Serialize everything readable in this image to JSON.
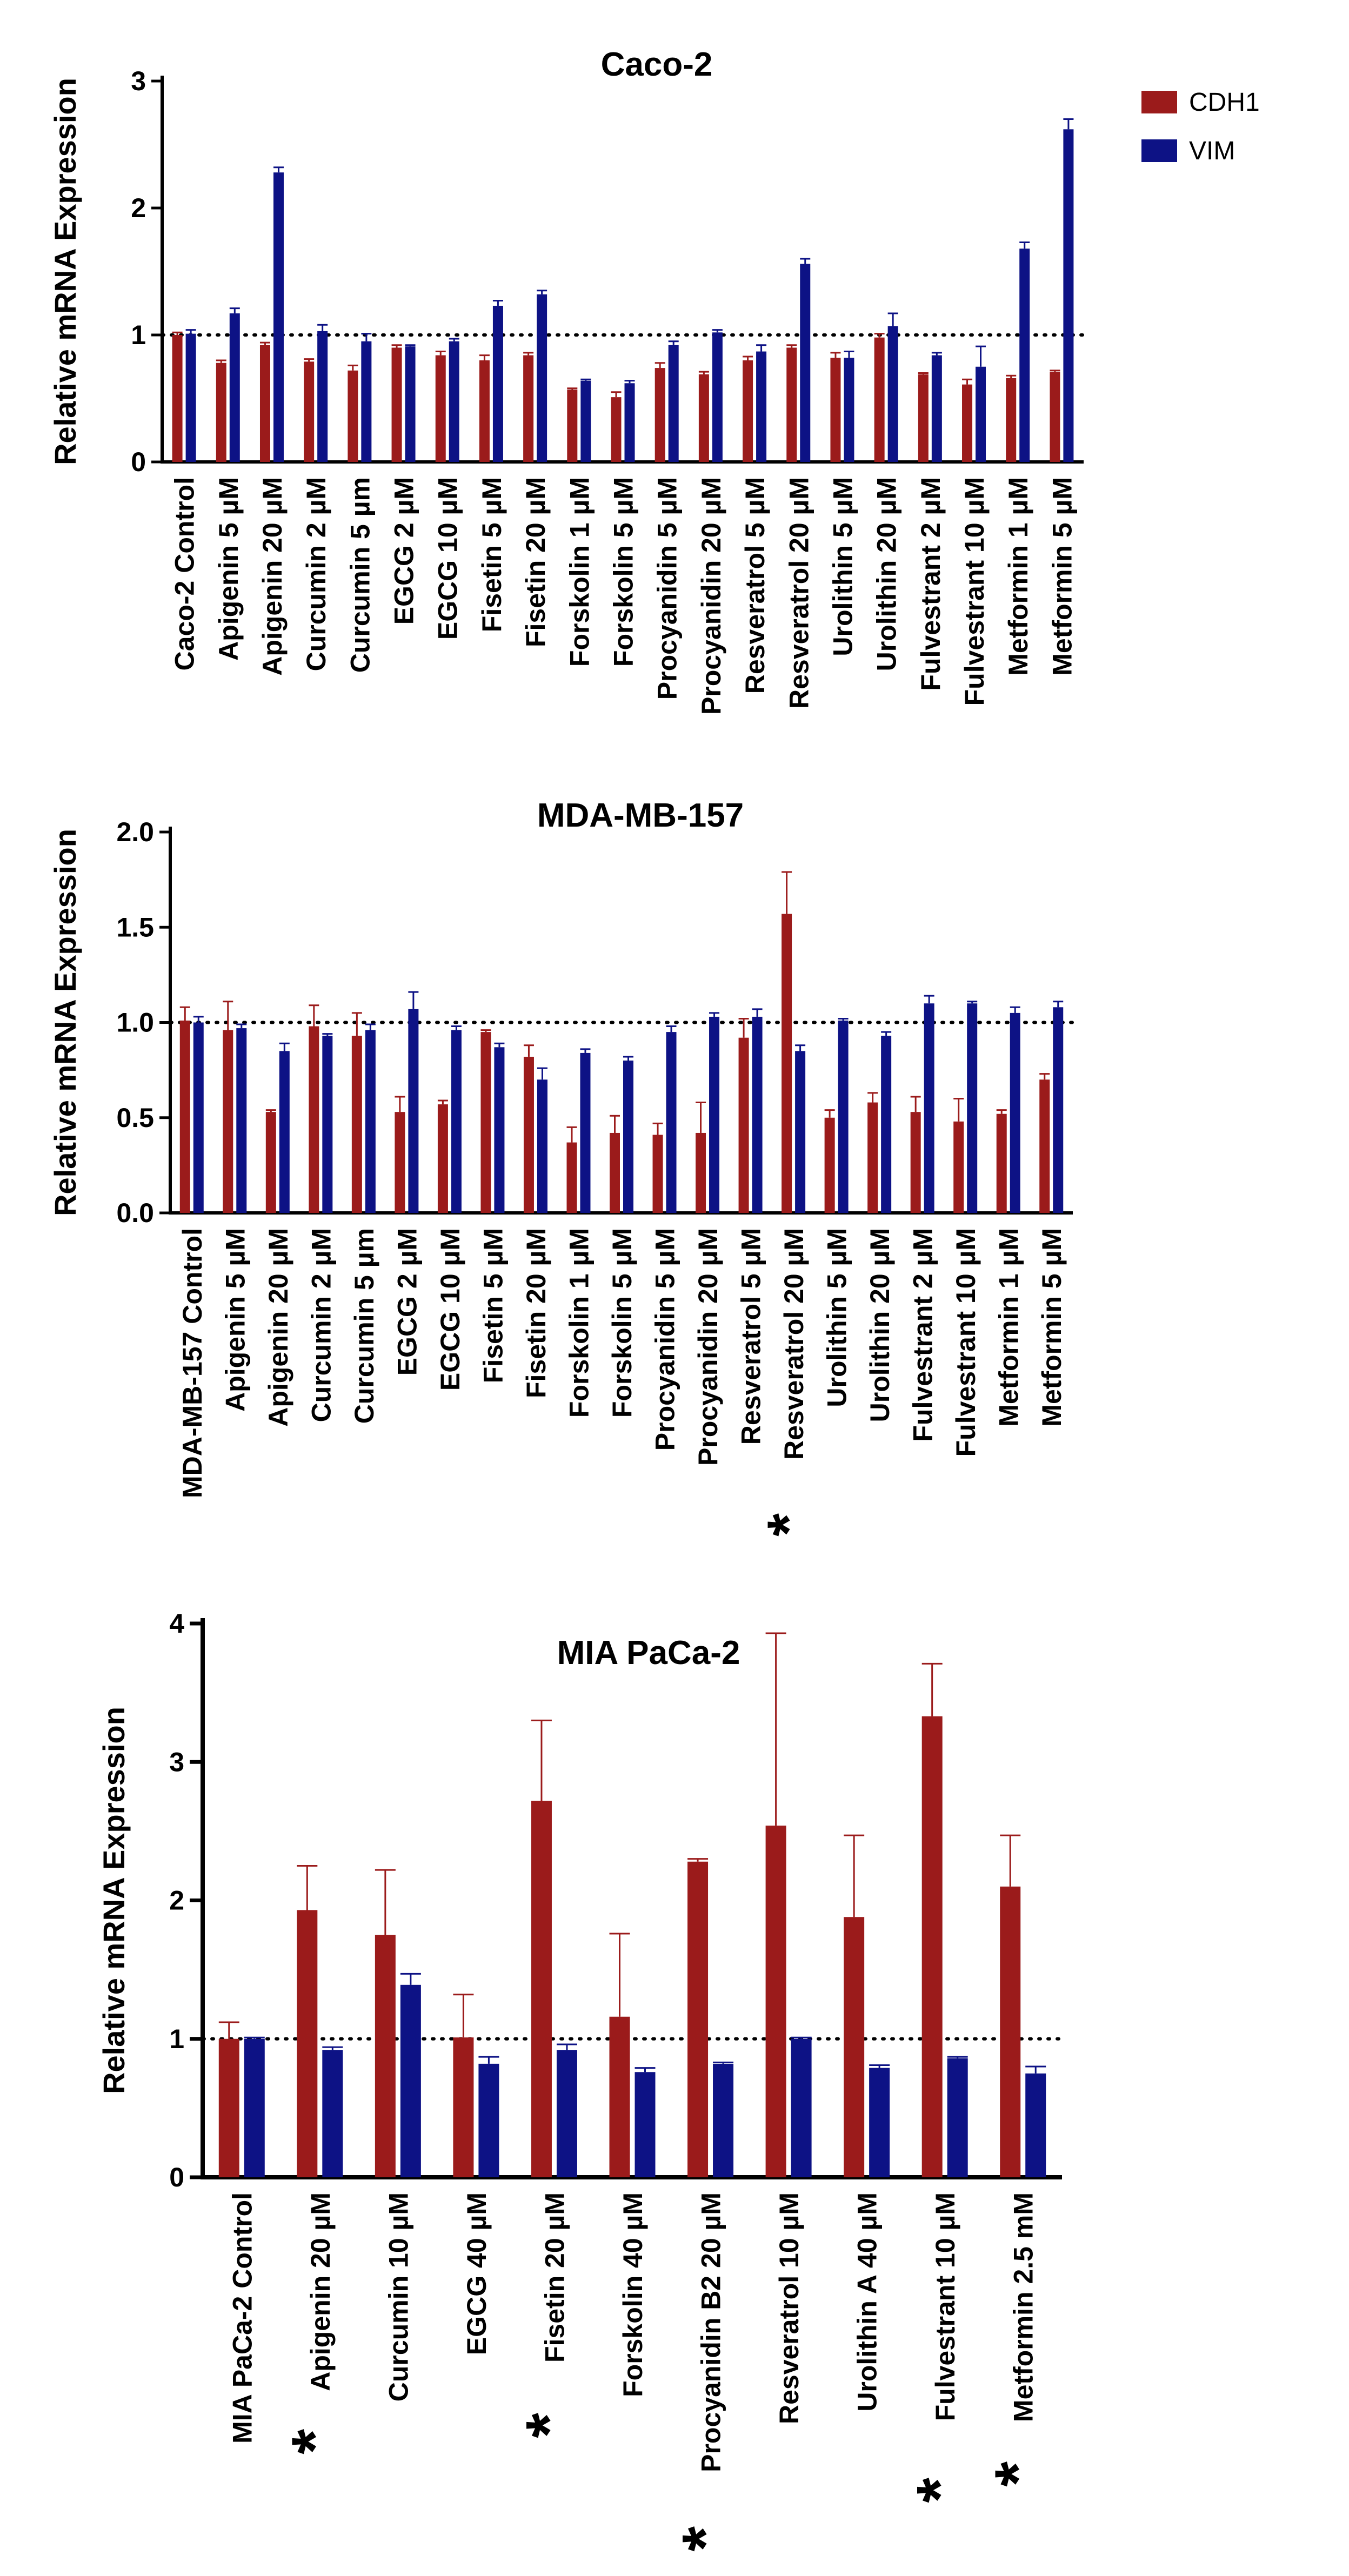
{
  "legend": [
    {
      "label": "CDH1",
      "color": "#9b1b1b"
    },
    {
      "label": "VIM",
      "color": "#0d1285"
    }
  ],
  "chart_data": [
    {
      "type": "bar",
      "title": "Caco-2",
      "ylabel": "Relative mRNA Expression",
      "xlabel": "",
      "ylim": [
        0,
        3
      ],
      "yticks": [
        "0",
        "1",
        "2",
        "3"
      ],
      "reference_line": 1,
      "legend_position": "top-right",
      "categories": [
        "Caco-2 Control",
        "Apigenin 5 µM",
        "Apigenin 20 µM",
        "Curcumin 2 µM",
        "Curcumin 5 µm",
        "EGCG 2 µM",
        "EGCG 10 µM",
        "Fisetin 5 µM",
        "Fisetin 20 µM",
        "Forskolin 1 µM",
        "Forskolin 5 µM",
        "Procyanidin 5 µM",
        "Procyanidin 20 µM",
        "Resveratrol 5 µM",
        "Resveratrol 20 µM",
        "Urolithin 5 µM",
        "Urolithin 20 µM",
        "Fulvestrant 2 µM",
        "Fulvestrant 10 µM",
        "Metformin 1 µM",
        "Metformin 5 µM"
      ],
      "marked": [],
      "series": [
        {
          "name": "CDH1",
          "values": [
            1.0,
            0.78,
            0.92,
            0.79,
            0.72,
            0.9,
            0.84,
            0.8,
            0.84,
            0.57,
            0.51,
            0.74,
            0.69,
            0.8,
            0.9,
            0.82,
            0.98,
            0.69,
            0.61,
            0.66,
            0.71
          ],
          "errors": [
            0.02,
            0.02,
            0.02,
            0.02,
            0.04,
            0.02,
            0.03,
            0.04,
            0.02,
            0.01,
            0.04,
            0.04,
            0.02,
            0.03,
            0.02,
            0.04,
            0.03,
            0.01,
            0.04,
            0.02,
            0.01
          ]
        },
        {
          "name": "VIM",
          "values": [
            1.01,
            1.17,
            2.28,
            1.03,
            0.95,
            0.91,
            0.95,
            1.23,
            1.32,
            0.64,
            0.62,
            0.92,
            1.02,
            0.87,
            1.56,
            0.82,
            1.07,
            0.84,
            0.75,
            1.68,
            2.62
          ],
          "errors": [
            0.03,
            0.04,
            0.04,
            0.05,
            0.06,
            0.01,
            0.02,
            0.04,
            0.03,
            0.01,
            0.02,
            0.03,
            0.02,
            0.05,
            0.04,
            0.05,
            0.1,
            0.02,
            0.16,
            0.05,
            0.08
          ]
        }
      ]
    },
    {
      "type": "bar",
      "title": "MDA-MB-157",
      "ylabel": "Relative mRNA Expression",
      "xlabel": "",
      "ylim": [
        0,
        2
      ],
      "yticks": [
        "0.0",
        "0.5",
        "1.0",
        "1.5",
        "2.0"
      ],
      "reference_line": 1,
      "categories": [
        "MDA-MB-157 Control",
        "Apigenin 5 µM",
        "Apigenin 20 µM",
        "Curcumin 2 µM",
        "Curcumin 5 µm",
        "EGCG 2 µM",
        "EGCG 10 µM",
        "Fisetin 5 µM",
        "Fisetin 20 µM",
        "Forskolin 1 µM",
        "Forskolin 5 µM",
        "Procyanidin 5 µM",
        "Procyanidin 20 µM",
        "Resveratrol 5 µM",
        "Resveratrol 20 µM",
        "Urolithin 5 µM",
        "Urolithin 20 µM",
        "Fulvestrant 2 µM",
        "Fulvestrant 10 µM",
        "Metformin 1 µM",
        "Metformin 5 µM"
      ],
      "marked": [
        14
      ],
      "series": [
        {
          "name": "CDH1",
          "values": [
            1.01,
            0.96,
            0.53,
            0.98,
            0.93,
            0.53,
            0.57,
            0.95,
            0.82,
            0.37,
            0.42,
            0.41,
            0.42,
            0.92,
            1.57,
            0.5,
            0.58,
            0.53,
            0.48,
            0.52,
            0.7
          ],
          "errors": [
            0.07,
            0.15,
            0.01,
            0.11,
            0.12,
            0.08,
            0.02,
            0.01,
            0.06,
            0.08,
            0.09,
            0.06,
            0.16,
            0.1,
            0.22,
            0.04,
            0.05,
            0.08,
            0.12,
            0.02,
            0.03
          ]
        },
        {
          "name": "VIM",
          "values": [
            1.0,
            0.97,
            0.85,
            0.93,
            0.96,
            1.07,
            0.96,
            0.87,
            0.7,
            0.84,
            0.8,
            0.95,
            1.03,
            1.03,
            0.85,
            1.01,
            0.93,
            1.1,
            1.1,
            1.05,
            1.08
          ],
          "errors": [
            0.03,
            0.02,
            0.04,
            0.01,
            0.03,
            0.09,
            0.02,
            0.02,
            0.06,
            0.02,
            0.02,
            0.03,
            0.02,
            0.04,
            0.03,
            0.01,
            0.02,
            0.04,
            0.01,
            0.03,
            0.03
          ]
        }
      ]
    },
    {
      "type": "bar",
      "title": "MIA PaCa-2",
      "ylabel": "Relative mRNA Expression",
      "xlabel": "",
      "ylim": [
        0,
        4
      ],
      "yticks": [
        "0",
        "1",
        "2",
        "3",
        "4"
      ],
      "reference_line": 1,
      "categories": [
        "MIA PaCa-2 Control",
        "Apigenin 20 µM",
        "Curcumin 10 µM",
        "EGCG 40 µM",
        "Fisetin 20 µM",
        "Forskolin 40 µM",
        "Procyanidin B2 20 µM",
        "Resveratrol 10 µM",
        "Urolithin A 40 µM",
        "Fulvestrant 10 µM",
        "Metformin 2.5 mM"
      ],
      "marked": [
        1,
        4,
        6,
        9,
        10
      ],
      "series": [
        {
          "name": "CDH1",
          "values": [
            1.0,
            1.93,
            1.75,
            1.01,
            2.72,
            1.16,
            2.28,
            2.54,
            1.88,
            3.33,
            2.1
          ],
          "errors": [
            0.12,
            0.32,
            0.47,
            0.31,
            0.58,
            0.6,
            0.02,
            1.39,
            0.59,
            0.38,
            0.37
          ]
        },
        {
          "name": "VIM",
          "values": [
            1.0,
            0.92,
            1.39,
            0.82,
            0.92,
            0.76,
            0.82,
            1.0,
            0.79,
            0.86,
            0.75
          ],
          "errors": [
            0.01,
            0.02,
            0.08,
            0.05,
            0.04,
            0.03,
            0.01,
            0.01,
            0.02,
            0.01,
            0.05
          ]
        }
      ]
    }
  ]
}
